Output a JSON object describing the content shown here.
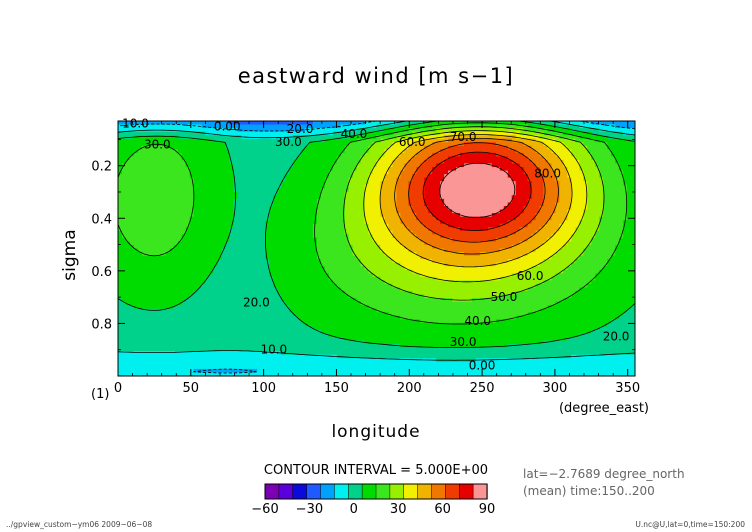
{
  "chart_data": {
    "type": "contour",
    "title": "eastward wind [m s−1]",
    "xlabel": "longitude",
    "xunit": "(degree_east)",
    "ylabel": "sigma",
    "xlim": [
      0,
      355
    ],
    "ylim": [
      1.0,
      0.03
    ],
    "xticks": [
      0,
      50,
      100,
      150,
      200,
      250,
      300,
      350
    ],
    "yticks": [
      0.2,
      0.4,
      0.6,
      0.8
    ],
    "panel_label": "(1)",
    "contour_interval_text": "CONTOUR INTERVAL = 5.000E+00",
    "info_lines": [
      "lat=−2.7689 degree_north",
      "(mean) time:150..200"
    ],
    "footer_left": "../gpview_custom−ym06  2009−06−08",
    "footer_right": "U.nc@U,lat=0,time=150:200",
    "contour_labels": [
      {
        "text": "10.0",
        "lon": 12,
        "sigma": 0.04
      },
      {
        "text": "0.00",
        "lon": 75,
        "sigma": 0.05
      },
      {
        "text": "20.0",
        "lon": 125,
        "sigma": 0.06
      },
      {
        "text": "30.0",
        "lon": 27,
        "sigma": 0.12
      },
      {
        "text": "30.0",
        "lon": 117,
        "sigma": 0.11
      },
      {
        "text": "40.0",
        "lon": 162,
        "sigma": 0.08
      },
      {
        "text": "60.0",
        "lon": 202,
        "sigma": 0.11
      },
      {
        "text": "70.0",
        "lon": 237,
        "sigma": 0.09
      },
      {
        "text": "80.0",
        "lon": 295,
        "sigma": 0.23
      },
      {
        "text": "60.0",
        "lon": 283,
        "sigma": 0.62
      },
      {
        "text": "50.0",
        "lon": 265,
        "sigma": 0.7
      },
      {
        "text": "40.0",
        "lon": 247,
        "sigma": 0.79
      },
      {
        "text": "30.0",
        "lon": 237,
        "sigma": 0.87
      },
      {
        "text": "20.0",
        "lon": 342,
        "sigma": 0.85
      },
      {
        "text": "20.0",
        "lon": 95,
        "sigma": 0.72
      },
      {
        "text": "10.0",
        "lon": 107,
        "sigma": 0.9
      },
      {
        "text": "0.00",
        "lon": 250,
        "sigma": 0.96
      }
    ],
    "colorbar": {
      "ticks": [
        -60,
        -30,
        0,
        30,
        60,
        90
      ],
      "colors": [
        "#7b00b4",
        "#5a00dc",
        "#0a0adc",
        "#1e5aff",
        "#00a0ff",
        "#00f0f0",
        "#00d28c",
        "#00dc00",
        "#3ce61e",
        "#96f000",
        "#f0f000",
        "#f0b400",
        "#f07800",
        "#f03c00",
        "#e60000",
        "#fa9696"
      ]
    }
  }
}
